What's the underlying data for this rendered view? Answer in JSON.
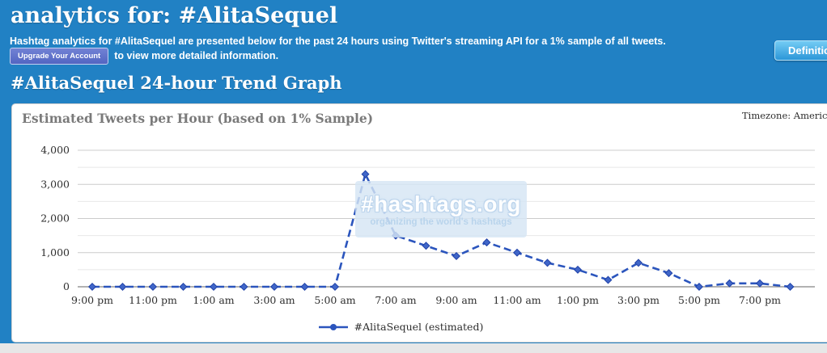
{
  "colors": {
    "band": "#2181c4",
    "page_bg": "#e7e7e7",
    "line": "#2b55bd",
    "grid_major": "#cccccc",
    "grid_minor": "#e8e8e8",
    "zero_axis": "#999999",
    "upgrade_button": "#5d71c9",
    "glossy_button_top": "#74ccf4",
    "glossy_button_bottom": "#2b96d8"
  },
  "header": {
    "title": "analytics for: #AlitaSequel",
    "description_line1": "Hashtag analytics for #AlitaSequel are presented below for the past 24 hours using Twitter's streaming API for a 1% sample of all tweets.",
    "upgrade_button_label": "Upgrade Your Account",
    "description_line2": "to view more detailed information.",
    "definitions_button_label": "Definitions"
  },
  "section": {
    "heading": "#AlitaSequel 24-hour Trend Graph"
  },
  "panel": {
    "title": "Estimated Tweets per Hour (based on 1% Sample)",
    "timezone_label": "Timezone: America/",
    "watermark": {
      "logo": "#hashtags.org",
      "tagline": "organizing the world's hashtags"
    }
  },
  "chart_data": {
    "type": "line",
    "title": "Estimated Tweets per Hour (based on 1% Sample)",
    "x": [
      "9:00 pm",
      "10:00 pm",
      "11:00 pm",
      "12:00 am",
      "1:00 am",
      "2:00 am",
      "3:00 am",
      "4:00 am",
      "5:00 am",
      "6:00 am",
      "7:00 am",
      "8:00 am",
      "9:00 am",
      "10:00 am",
      "11:00 am",
      "12:00 pm",
      "1:00 pm",
      "2:00 pm",
      "3:00 pm",
      "4:00 pm",
      "5:00 pm",
      "6:00 pm",
      "7:00 pm",
      "8:00 pm"
    ],
    "series": [
      {
        "name": "#AlitaSequel (estimated)",
        "values": [
          0,
          0,
          0,
          0,
          0,
          0,
          0,
          0,
          0,
          3300,
          1500,
          1200,
          900,
          1300,
          1000,
          700,
          500,
          200,
          700,
          400,
          0,
          100,
          100,
          0
        ]
      }
    ],
    "x_tick_interval": 2,
    "ylim": [
      0,
      4000
    ],
    "y_tick_step": 1000,
    "y_minor_step": 500,
    "grid": "horizontal",
    "line_style": "dashed",
    "marker": "diamond",
    "line_color": "#2b55bd",
    "legend_label": "#AlitaSequel (estimated)",
    "legend_position": "bottom-center"
  }
}
